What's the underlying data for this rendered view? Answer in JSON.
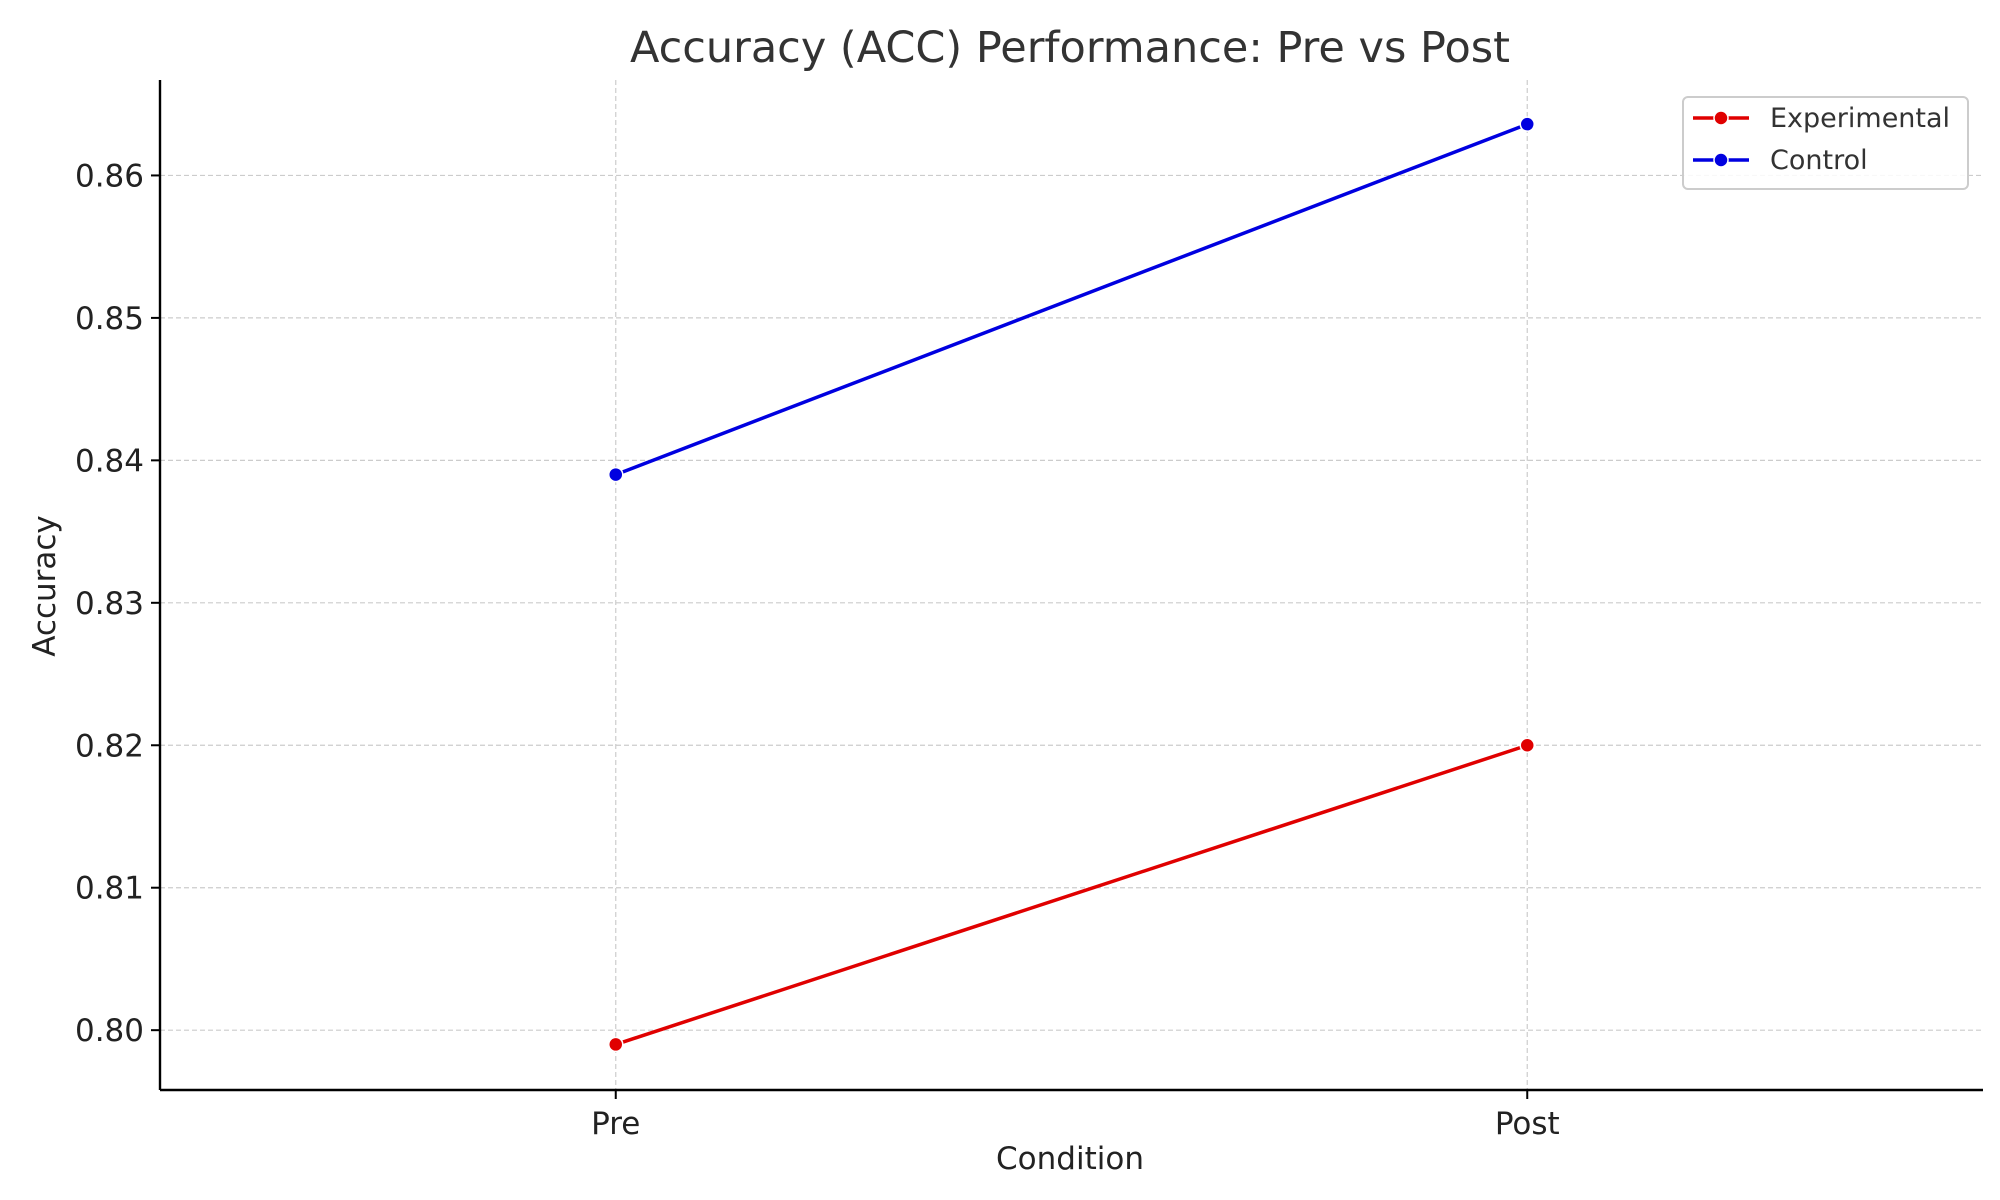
{
  "chart_data": {
    "type": "line",
    "title": "Accuracy (ACC) Performance: Pre vs Post",
    "xlabel": "Condition",
    "ylabel": "Accuracy",
    "categories": [
      "Pre",
      "Post"
    ],
    "series": [
      {
        "name": "Experimental",
        "values": [
          0.799,
          0.82
        ],
        "color": "#e00000"
      },
      {
        "name": "Control",
        "values": [
          0.839,
          0.8636
        ],
        "color": "#0000e0"
      }
    ],
    "ylim": [
      0.7958,
      0.8667
    ],
    "xlim": [
      -0.5,
      1.5
    ],
    "yticks": [
      0.8,
      0.81,
      0.82,
      0.83,
      0.84,
      0.85,
      0.86
    ],
    "ytick_labels": [
      "0.80",
      "0.81",
      "0.82",
      "0.83",
      "0.84",
      "0.85",
      "0.86"
    ],
    "grid": true,
    "legend_position": "top-right"
  }
}
